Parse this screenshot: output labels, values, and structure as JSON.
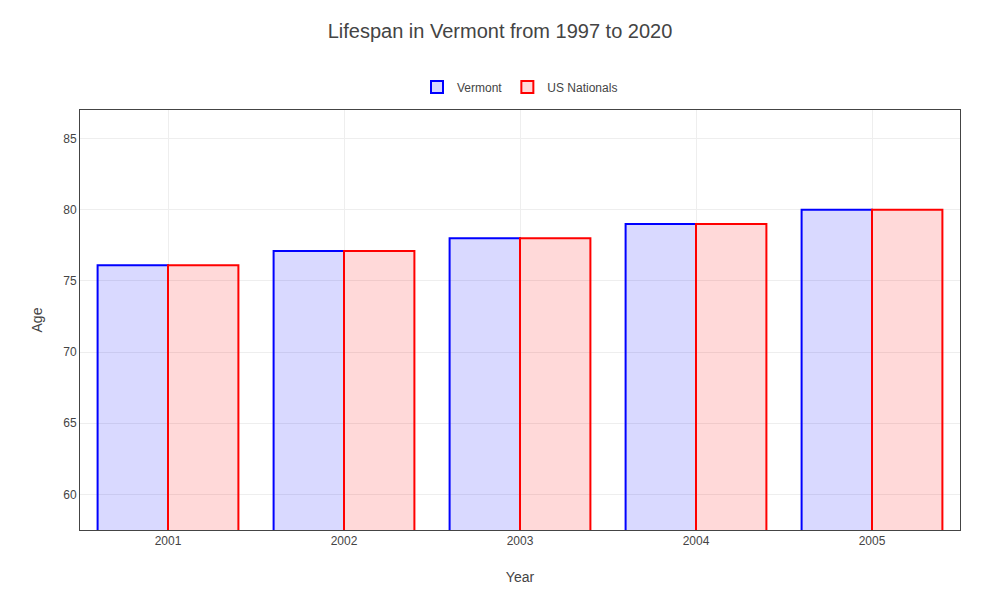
{
  "chart_data": {
    "type": "bar",
    "title": "Lifespan in Vermont from 1997 to 2020",
    "x_label": "Year",
    "y_label": "Age",
    "categories": [
      "2001",
      "2002",
      "2003",
      "2004",
      "2005"
    ],
    "series": [
      {
        "name": "Vermont",
        "color": "#0000ff",
        "values": [
          76.1,
          77.1,
          78.0,
          79.0,
          80.0
        ]
      },
      {
        "name": "US Nationals",
        "color": "#ff0000",
        "values": [
          76.1,
          77.1,
          78.0,
          79.0,
          80.0
        ]
      }
    ],
    "ylim": [
      57.5,
      87
    ],
    "yticks": [
      60,
      65,
      70,
      75,
      80,
      85
    ],
    "grid": true,
    "legend": "top"
  }
}
